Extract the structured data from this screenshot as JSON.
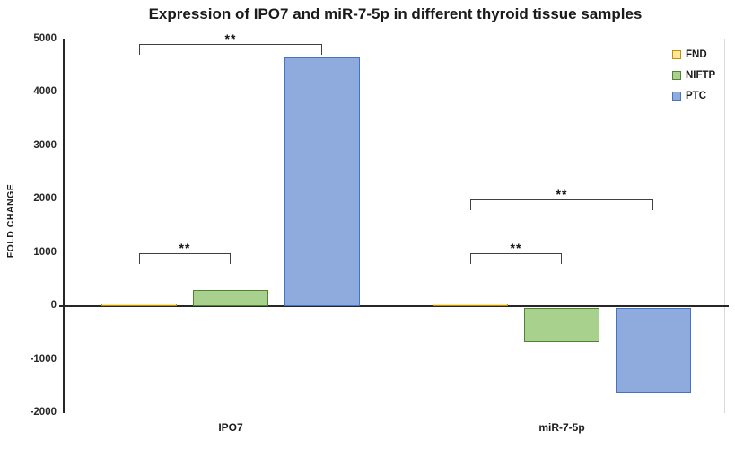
{
  "chart_data": {
    "type": "bar",
    "title": "Expression of IPO7 and miR-7-5p in different thyroid tissue samples",
    "xlabel": "",
    "ylabel": "FOLD CHANGE",
    "categories": [
      "IPO7",
      "miR-7-5p"
    ],
    "series": [
      {
        "name": "FND",
        "fill": "#FFE699",
        "border": "#BF9000",
        "values": [
          50,
          50
        ]
      },
      {
        "name": "NIFTP",
        "fill": "#A9D18E",
        "border": "#548235",
        "values": [
          300,
          -650
        ]
      },
      {
        "name": "PTC",
        "fill": "#8FAADC",
        "border": "#4472C4",
        "values": [
          4650,
          -1600
        ]
      }
    ],
    "ylim": [
      -2000,
      5000
    ],
    "y_tick_step": 1000,
    "grid": false,
    "legend_position": "top-right",
    "annotations": [
      {
        "category": "IPO7",
        "from": "FND",
        "to": "NIFTP",
        "label": "**",
        "y": 1000
      },
      {
        "category": "IPO7",
        "from": "FND",
        "to": "PTC",
        "label": "**",
        "y": 4900
      },
      {
        "category": "miR-7-5p",
        "from": "FND",
        "to": "NIFTP",
        "label": "**",
        "y": 1000
      },
      {
        "category": "miR-7-5p",
        "from": "FND",
        "to": "PTC",
        "label": "**",
        "y": 2000
      }
    ]
  }
}
